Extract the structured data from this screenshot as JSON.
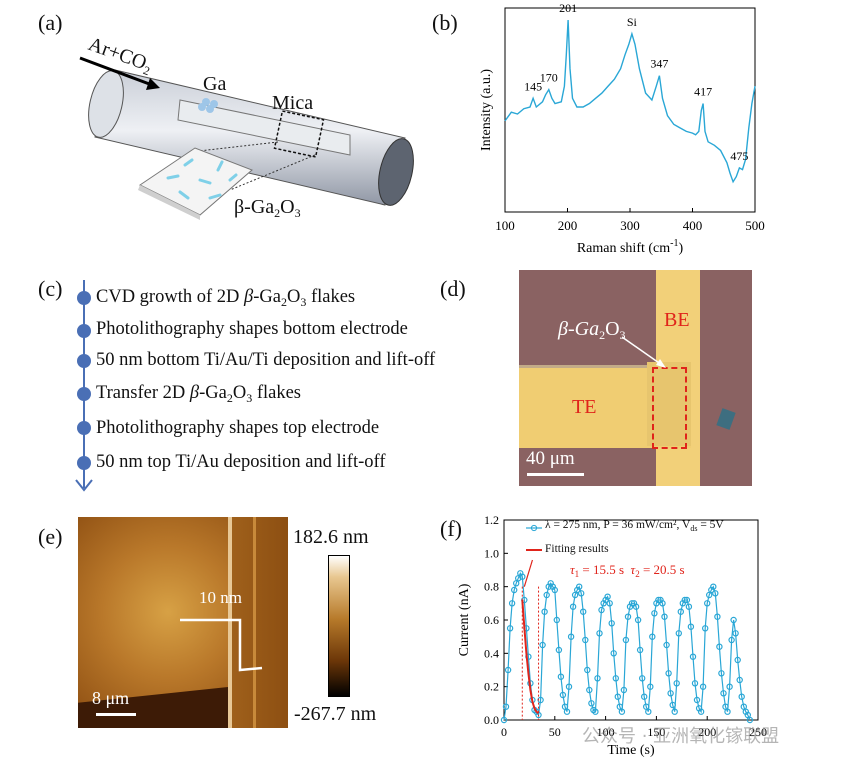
{
  "panels": {
    "a": {
      "label": "(a)",
      "gas_label": "Ar+CO",
      "gas_sub": "2",
      "ga_label": "Ga",
      "mica_label": "Mica",
      "product_prefix": "β-Ga",
      "product_sub1": "2",
      "product_mid": "O",
      "product_sub2": "3"
    },
    "b": {
      "label": "(b)",
      "chart_data": {
        "type": "line",
        "xlabel": "Raman shift (cm",
        "xlabel_sup": "-1",
        "xlabel_end": ")",
        "ylabel": "Intensity (a.u.)",
        "xlim": [
          100,
          500
        ],
        "xticks": [
          "100",
          "200",
          "300",
          "400",
          "500"
        ],
        "peak_labels": [
          {
            "text": "145",
            "x": 145
          },
          {
            "text": "170",
            "x": 170
          },
          {
            "text": "201",
            "x": 201
          },
          {
            "text": "Si",
            "x": 303
          },
          {
            "text": "347",
            "x": 347
          },
          {
            "text": "417",
            "x": 417
          },
          {
            "text": "475",
            "x": 475
          }
        ],
        "x": [
          100,
          110,
          120,
          130,
          140,
          145,
          150,
          160,
          165,
          170,
          175,
          180,
          190,
          195,
          198,
          201,
          204,
          208,
          215,
          225,
          235,
          245,
          255,
          265,
          275,
          285,
          292,
          298,
          303,
          308,
          315,
          325,
          335,
          342,
          347,
          352,
          360,
          370,
          380,
          390,
          400,
          405,
          410,
          414,
          417,
          420,
          425,
          435,
          445,
          455,
          460,
          465,
          470,
          475,
          480,
          485,
          490,
          495,
          500
        ],
        "y": [
          0.42,
          0.47,
          0.46,
          0.49,
          0.5,
          0.55,
          0.5,
          0.53,
          0.57,
          0.6,
          0.55,
          0.52,
          0.53,
          0.62,
          0.8,
          1.0,
          0.72,
          0.55,
          0.5,
          0.5,
          0.52,
          0.55,
          0.58,
          0.62,
          0.66,
          0.72,
          0.8,
          0.86,
          0.92,
          0.86,
          0.72,
          0.58,
          0.54,
          0.62,
          0.68,
          0.55,
          0.45,
          0.4,
          0.38,
          0.36,
          0.35,
          0.34,
          0.36,
          0.48,
          0.52,
          0.36,
          0.3,
          0.28,
          0.25,
          0.18,
          0.12,
          0.07,
          0.1,
          0.15,
          0.14,
          0.2,
          0.38,
          0.52,
          0.62
        ]
      }
    },
    "c": {
      "label": "(c)",
      "steps": [
        {
          "pre": "CVD growth of 2D ",
          "beta": "β",
          "mid": "-Ga",
          "s1": "2",
          "o": "O",
          "s2": "3",
          "post": " flakes"
        },
        {
          "text": "Photolithography shapes bottom electrode"
        },
        {
          "text": "50 nm bottom Ti/Au/Ti deposition and lift-off"
        },
        {
          "pre": "Transfer 2D ",
          "beta": "β",
          "mid": "-Ga",
          "s1": "2",
          "o": "O",
          "s2": "3",
          "post": " flakes"
        },
        {
          "text": "Photolithography shapes top electrode"
        },
        {
          "text": "50 nm top Ti/Au deposition and lift-off"
        }
      ]
    },
    "d": {
      "label": "(d)",
      "flake_prefix": "β-Ga",
      "flake_sub1": "2",
      "flake_mid": "O",
      "flake_sub2": "3",
      "be_label": "BE",
      "te_label": "TE",
      "scale_label": "40 μm",
      "colors": {
        "background": "#8a6262",
        "electrode": "#f2d079",
        "label_red": "#e0241b"
      }
    },
    "e": {
      "label": "(e)",
      "height_label": "10 nm",
      "scale_label": "8 μm",
      "colorbar_max": "182.6 nm",
      "colorbar_min": "-267.7 nm"
    },
    "f": {
      "label": "(f)",
      "legend_line1": "λ = 275 nm, P = 36 mW/cm², V",
      "legend_line1_sub": "ds",
      "legend_line1_end": " = 5V",
      "legend_fit": "Fitting results",
      "tau1": "τ",
      "tau1_sub": "1",
      "tau1_val": " = 15.5 s",
      "tau2": "τ",
      "tau2_sub": "2",
      "tau2_val": " = 20.5 s",
      "watermark": "公众号 · 亚洲氧化镓联盟",
      "chart_data": {
        "type": "line",
        "xlabel": "Time (s)",
        "ylabel": "Current (nA)",
        "xlim": [
          0,
          250
        ],
        "ylim": [
          0,
          1.2
        ],
        "xticks": [
          "0",
          "50",
          "100",
          "150",
          "200",
          "250"
        ],
        "yticks": [
          "0.0",
          "0.2",
          "0.4",
          "0.6",
          "0.8",
          "1.0",
          "1.2"
        ],
        "series": [
          {
            "name": "λ = 275 nm, P = 36 mW/cm², Vds = 5V",
            "x": [
              0,
              2,
              4,
              6,
              8,
              10,
              12,
              14,
              16,
              18,
              20,
              22,
              24,
              26,
              28,
              30,
              32,
              34,
              36,
              38,
              40,
              42,
              44,
              46,
              48,
              50,
              52,
              54,
              56,
              58,
              60,
              62,
              64,
              66,
              68,
              70,
              72,
              74,
              76,
              78,
              80,
              82,
              84,
              86,
              88,
              90,
              92,
              94,
              96,
              98,
              100,
              102,
              104,
              106,
              108,
              110,
              112,
              114,
              116,
              118,
              120,
              122,
              124,
              126,
              128,
              130,
              132,
              134,
              136,
              138,
              140,
              142,
              144,
              146,
              148,
              150,
              152,
              154,
              156,
              158,
              160,
              162,
              164,
              166,
              168,
              170,
              172,
              174,
              176,
              178,
              180,
              182,
              184,
              186,
              188,
              190,
              192,
              194,
              196,
              198,
              200,
              202,
              204,
              206,
              208,
              210,
              212,
              214,
              216,
              218,
              220,
              222,
              224,
              226,
              228,
              230,
              232,
              234,
              236,
              238,
              240,
              242
            ],
            "values": [
              0.0,
              0.08,
              0.3,
              0.55,
              0.7,
              0.78,
              0.82,
              0.85,
              0.88,
              0.86,
              0.72,
              0.55,
              0.38,
              0.22,
              0.12,
              0.06,
              0.05,
              0.03,
              0.12,
              0.45,
              0.65,
              0.75,
              0.8,
              0.82,
              0.8,
              0.78,
              0.6,
              0.42,
              0.26,
              0.15,
              0.08,
              0.05,
              0.2,
              0.5,
              0.68,
              0.75,
              0.78,
              0.8,
              0.76,
              0.65,
              0.48,
              0.3,
              0.18,
              0.1,
              0.06,
              0.05,
              0.25,
              0.52,
              0.66,
              0.7,
              0.72,
              0.74,
              0.7,
              0.58,
              0.4,
              0.25,
              0.14,
              0.08,
              0.05,
              0.18,
              0.48,
              0.62,
              0.68,
              0.7,
              0.7,
              0.68,
              0.6,
              0.42,
              0.25,
              0.14,
              0.08,
              0.05,
              0.2,
              0.5,
              0.64,
              0.7,
              0.72,
              0.72,
              0.7,
              0.62,
              0.45,
              0.28,
              0.16,
              0.09,
              0.05,
              0.22,
              0.52,
              0.65,
              0.7,
              0.72,
              0.72,
              0.68,
              0.56,
              0.38,
              0.22,
              0.12,
              0.07,
              0.05,
              0.2,
              0.55,
              0.7,
              0.75,
              0.78,
              0.8,
              0.76,
              0.62,
              0.44,
              0.28,
              0.16,
              0.08,
              0.05,
              0.2,
              0.48,
              0.6,
              0.52,
              0.36,
              0.24,
              0.14,
              0.08,
              0.05,
              0.03,
              0.0
            ]
          },
          {
            "name": "Fitting results",
            "x": [
              18,
              20,
              22,
              24,
              26,
              28,
              30,
              32,
              34
            ],
            "values": [
              0.72,
              0.56,
              0.4,
              0.28,
              0.18,
              0.11,
              0.07,
              0.05,
              0.04
            ]
          }
        ]
      }
    }
  }
}
